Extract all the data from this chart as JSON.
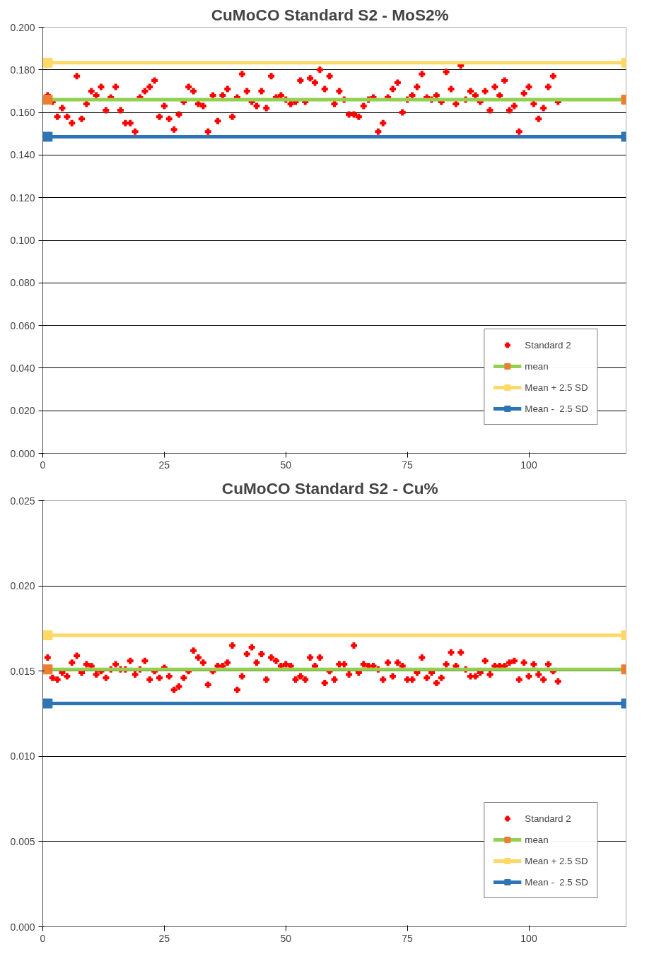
{
  "chart_data": [
    {
      "type": "scatter",
      "title": "CuMoCO Standard S2 -   MoS2%",
      "xlim": [
        0,
        120
      ],
      "xticks": [
        0,
        25,
        50,
        75,
        100
      ],
      "ylim": [
        0,
        0.2
      ],
      "yticks": [
        {
          "value": 0,
          "label": "0.000"
        },
        {
          "value": 0.02,
          "label": "0.020"
        },
        {
          "value": 0.04,
          "label": "0.040"
        },
        {
          "value": 0.06,
          "label": "0.060"
        },
        {
          "value": 0.08,
          "label": "0.080"
        },
        {
          "value": 0.1,
          "label": "0.100"
        },
        {
          "value": 0.12,
          "label": "0.120"
        },
        {
          "value": 0.14,
          "label": "0.140"
        },
        {
          "value": 0.16,
          "label": "0.160"
        },
        {
          "value": 0.18,
          "label": "0.180"
        },
        {
          "value": 0.2,
          "label": "0.200"
        }
      ],
      "grid": "y",
      "legend": "bottom right",
      "series": [
        {
          "name": "Standard 2",
          "type": "scatter",
          "marker": "cross",
          "color": "#ff0000",
          "x": [
            1,
            2,
            3,
            4,
            5,
            6,
            7,
            8,
            9,
            10,
            11,
            12,
            13,
            14,
            15,
            16,
            17,
            18,
            19,
            20,
            21,
            22,
            23,
            24,
            25,
            26,
            27,
            28,
            29,
            30,
            31,
            32,
            33,
            34,
            35,
            36,
            37,
            38,
            39,
            40,
            41,
            42,
            43,
            44,
            45,
            46,
            47,
            48,
            49,
            50,
            51,
            52,
            53,
            54,
            55,
            56,
            57,
            58,
            59,
            60,
            61,
            62,
            63,
            64,
            65,
            66,
            67,
            68,
            69,
            70,
            71,
            72,
            73,
            74,
            75,
            76,
            77,
            78,
            79,
            80,
            81,
            82,
            83,
            84,
            85,
            86,
            87,
            88,
            89,
            90,
            91,
            92,
            93,
            94,
            95,
            96,
            97,
            98,
            99,
            100,
            101,
            102,
            103,
            104,
            105,
            106
          ],
          "values": [
            0.168,
            0.165,
            0.158,
            0.162,
            0.158,
            0.155,
            0.177,
            0.157,
            0.164,
            0.17,
            0.168,
            0.172,
            0.161,
            0.167,
            0.172,
            0.161,
            0.155,
            0.155,
            0.151,
            0.167,
            0.17,
            0.172,
            0.175,
            0.158,
            0.163,
            0.157,
            0.152,
            0.159,
            0.165,
            0.172,
            0.17,
            0.164,
            0.163,
            0.151,
            0.168,
            0.156,
            0.168,
            0.171,
            0.158,
            0.167,
            0.178,
            0.17,
            0.165,
            0.163,
            0.17,
            0.162,
            0.177,
            0.167,
            0.168,
            0.166,
            0.164,
            0.165,
            0.175,
            0.165,
            0.176,
            0.174,
            0.18,
            0.171,
            0.177,
            0.164,
            0.17,
            0.166,
            0.159,
            0.159,
            0.158,
            0.163,
            0.166,
            0.167,
            0.151,
            0.155,
            0.167,
            0.171,
            0.174,
            0.16,
            0.166,
            0.168,
            0.172,
            0.178,
            0.167,
            0.166,
            0.168,
            0.165,
            0.179,
            0.171,
            0.164,
            0.182,
            0.166,
            0.17,
            0.168,
            0.165,
            0.17,
            0.161,
            0.172,
            0.168,
            0.175,
            0.161,
            0.163,
            0.151,
            0.169,
            0.172,
            0.164,
            0.157,
            0.162,
            0.172,
            0.177,
            0.165
          ]
        },
        {
          "name": "mean",
          "type": "line",
          "marker": "square",
          "color": "#92d050",
          "colors": [
            "#ed7d31",
            "#ed7d31"
          ],
          "x": [
            1,
            120
          ],
          "values": [
            0.166,
            0.166
          ]
        },
        {
          "name": "Mean + 2.5 SD",
          "type": "line",
          "marker": "square",
          "color": "#ffd966",
          "colors": [
            "#ffd966",
            "#ffd966"
          ],
          "x": [
            1,
            120
          ],
          "values": [
            0.1833,
            0.1833
          ]
        },
        {
          "name": "Mean -  2.5 SD",
          "type": "line",
          "marker": "square",
          "color": "#2e75b6",
          "colors": [
            "#2e75b6",
            "#2e75b6"
          ],
          "x": [
            1,
            120
          ],
          "values": [
            0.1486,
            0.1486
          ]
        }
      ]
    },
    {
      "type": "scatter",
      "title": "CuMoCO Standard S2 -   Cu%",
      "xlim": [
        0,
        120
      ],
      "xticks": [
        0,
        25,
        50,
        75,
        100
      ],
      "ylim": [
        0,
        0.025
      ],
      "yticks": [
        {
          "value": 0,
          "label": "0.000"
        },
        {
          "value": 0.005,
          "label": "0.005"
        },
        {
          "value": 0.01,
          "label": "0.010"
        },
        {
          "value": 0.015,
          "label": "0.015"
        },
        {
          "value": 0.02,
          "label": "0.020"
        },
        {
          "value": 0.025,
          "label": "0.025"
        }
      ],
      "grid": "y",
      "legend": "bottom right",
      "series": [
        {
          "name": "Standard 2",
          "type": "scatter",
          "marker": "cross",
          "color": "#ff0000",
          "x": [
            1,
            2,
            3,
            4,
            5,
            6,
            7,
            8,
            9,
            10,
            11,
            12,
            13,
            14,
            15,
            16,
            17,
            18,
            19,
            20,
            21,
            22,
            23,
            24,
            25,
            26,
            27,
            28,
            29,
            30,
            31,
            32,
            33,
            34,
            35,
            36,
            37,
            38,
            39,
            40,
            41,
            42,
            43,
            44,
            45,
            46,
            47,
            48,
            49,
            50,
            51,
            52,
            53,
            54,
            55,
            56,
            57,
            58,
            59,
            60,
            61,
            62,
            63,
            64,
            65,
            66,
            67,
            68,
            69,
            70,
            71,
            72,
            73,
            74,
            75,
            76,
            77,
            78,
            79,
            80,
            81,
            82,
            83,
            84,
            85,
            86,
            87,
            88,
            89,
            90,
            91,
            92,
            93,
            94,
            95,
            96,
            97,
            98,
            99,
            100,
            101,
            102,
            103,
            104,
            105,
            106
          ],
          "values": [
            0.0158,
            0.0146,
            0.0145,
            0.0149,
            0.0147,
            0.0155,
            0.0159,
            0.0149,
            0.0154,
            0.0153,
            0.0148,
            0.015,
            0.0146,
            0.0151,
            0.0154,
            0.0151,
            0.0151,
            0.0156,
            0.0148,
            0.0151,
            0.0156,
            0.0145,
            0.015,
            0.0146,
            0.0152,
            0.0147,
            0.0139,
            0.0141,
            0.0146,
            0.015,
            0.0162,
            0.0158,
            0.0155,
            0.0142,
            0.015,
            0.0153,
            0.0153,
            0.0155,
            0.0165,
            0.0139,
            0.0147,
            0.016,
            0.0164,
            0.0155,
            0.016,
            0.0145,
            0.0158,
            0.0156,
            0.0153,
            0.0154,
            0.0153,
            0.0145,
            0.0147,
            0.0145,
            0.0158,
            0.0153,
            0.0158,
            0.0143,
            0.015,
            0.0145,
            0.0154,
            0.0154,
            0.0148,
            0.0165,
            0.0149,
            0.0154,
            0.0153,
            0.0153,
            0.0151,
            0.0145,
            0.0155,
            0.0147,
            0.0155,
            0.0153,
            0.0145,
            0.0145,
            0.0149,
            0.0158,
            0.0146,
            0.0149,
            0.0143,
            0.0146,
            0.0154,
            0.0161,
            0.0153,
            0.0161,
            0.0151,
            0.0147,
            0.0147,
            0.0149,
            0.0156,
            0.0148,
            0.0153,
            0.0153,
            0.0153,
            0.0155,
            0.0156,
            0.0145,
            0.0155,
            0.0147,
            0.0154,
            0.0148,
            0.0145,
            0.0154,
            0.015,
            0.0144
          ]
        },
        {
          "name": "mean",
          "type": "line",
          "marker": "square",
          "color": "#92d050",
          "colors": [
            "#ed7d31",
            "#ed7d31"
          ],
          "x": [
            1,
            120
          ],
          "values": [
            0.0151,
            0.0151
          ]
        },
        {
          "name": "Mean + 2.5 SD",
          "type": "line",
          "marker": "square",
          "color": "#ffd966",
          "colors": [
            "#ffd966",
            "#ffd966"
          ],
          "x": [
            1,
            120
          ],
          "values": [
            0.0171,
            0.0171
          ]
        },
        {
          "name": "Mean -  2.5 SD",
          "type": "line",
          "marker": "square",
          "color": "#2e75b6",
          "colors": [
            "#2e75b6",
            "#2e75b6"
          ],
          "x": [
            1,
            120
          ],
          "values": [
            0.0131,
            0.0131
          ]
        }
      ]
    }
  ]
}
